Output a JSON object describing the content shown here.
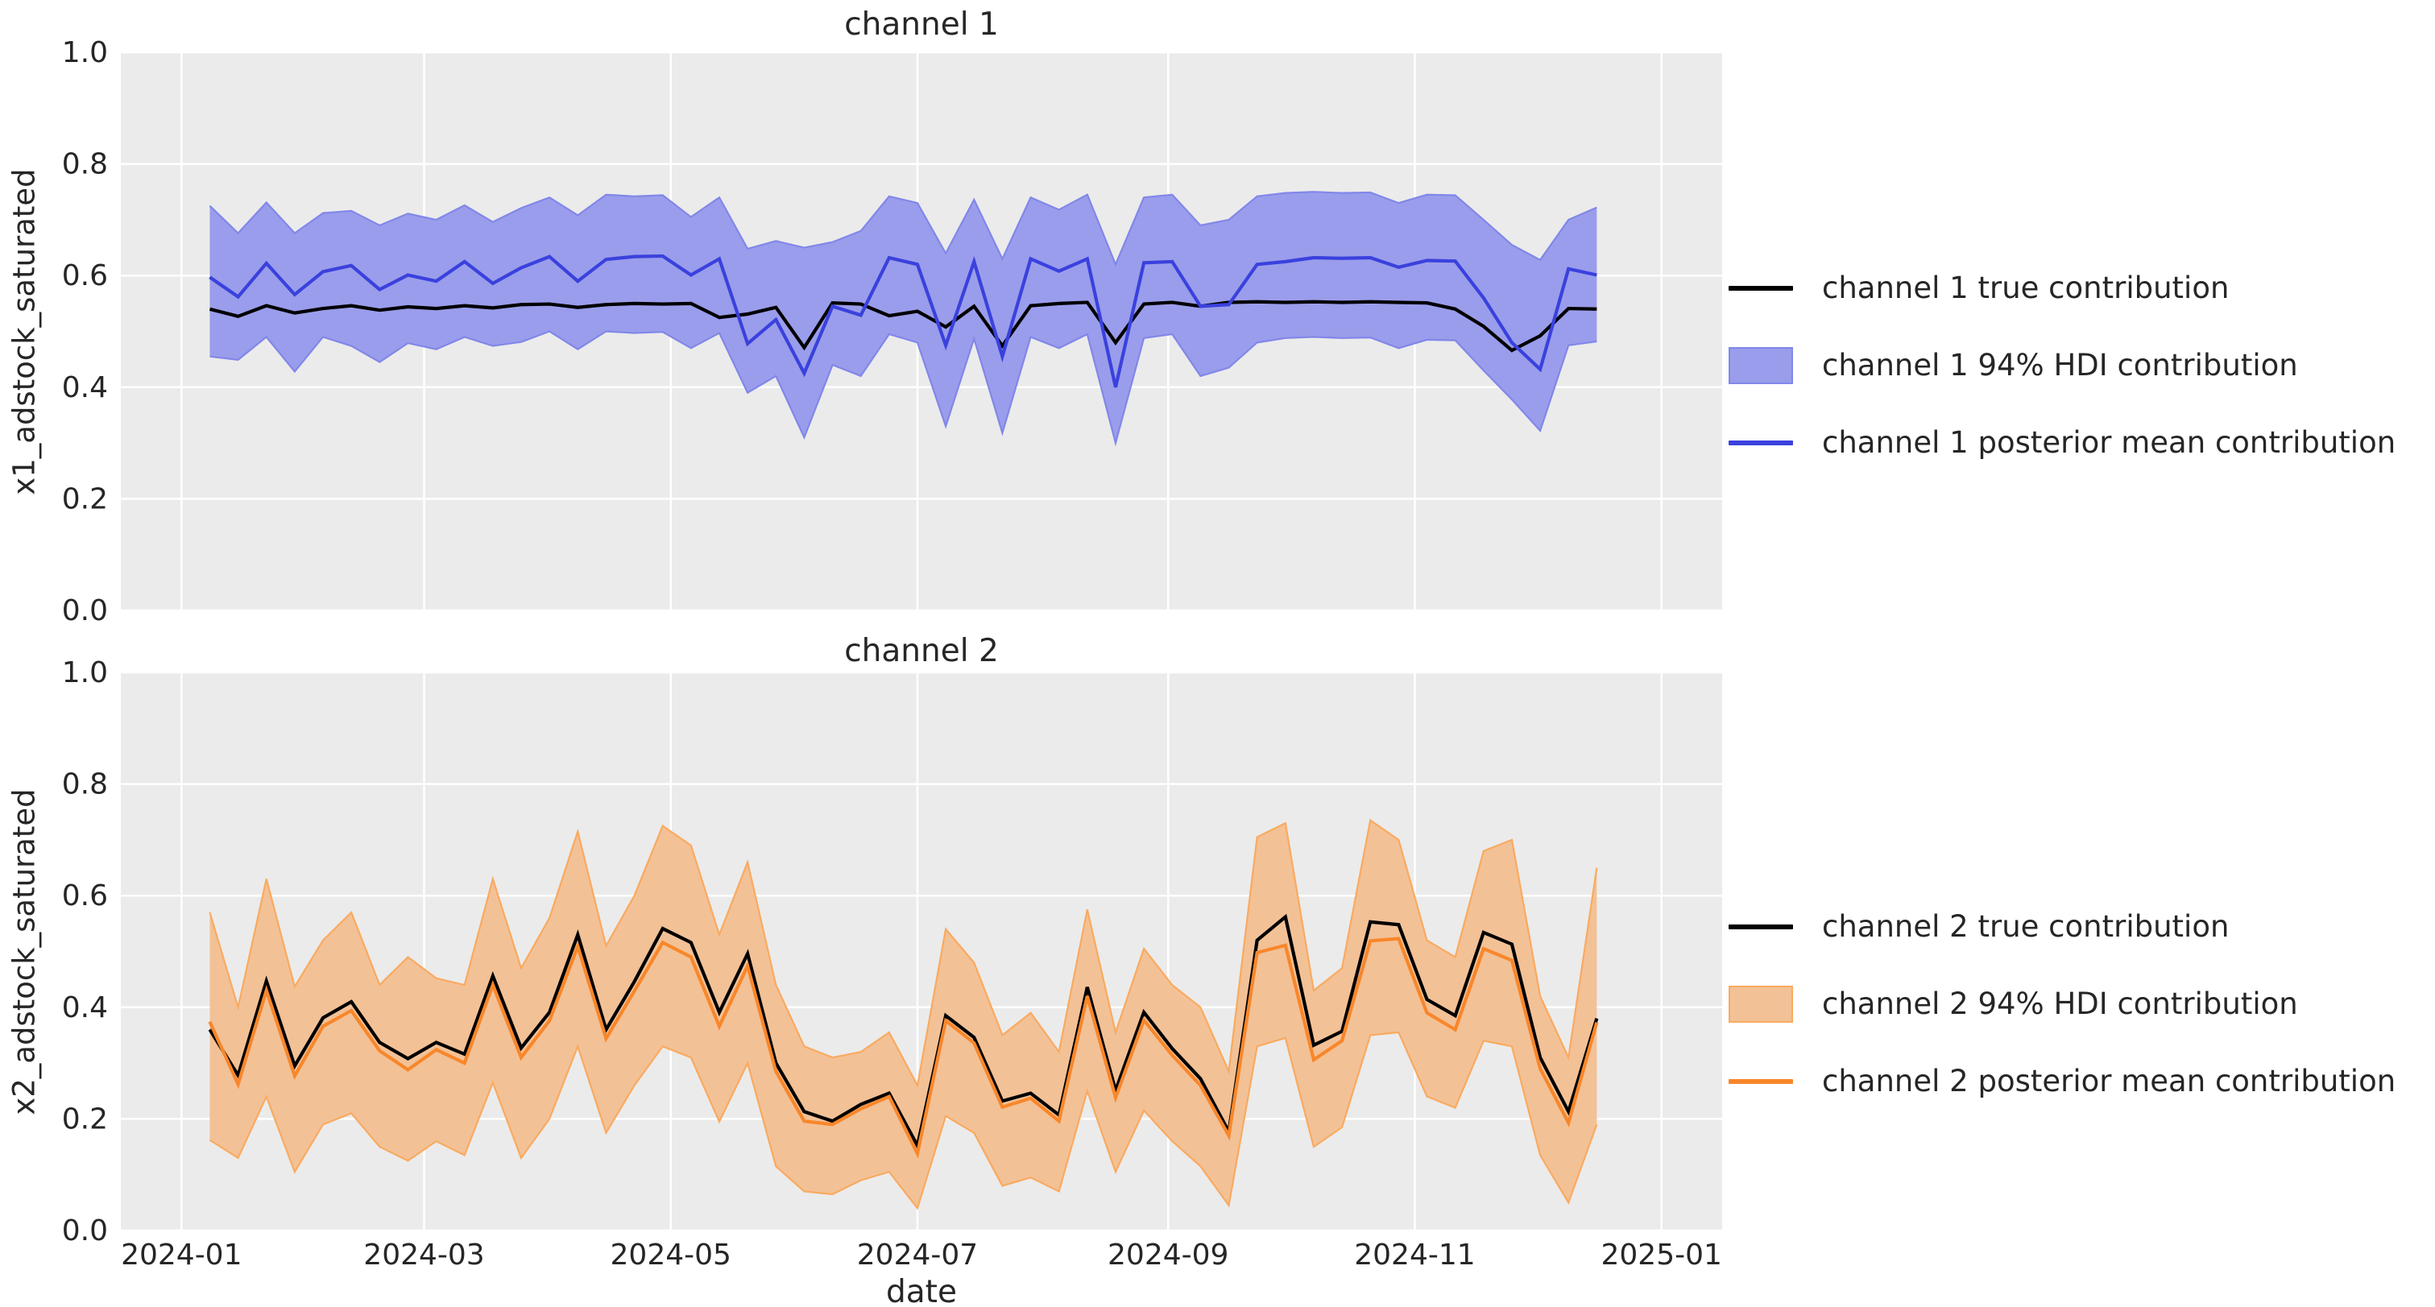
{
  "figure": {
    "xlabel": "date",
    "background_color": "#ffffff",
    "plot_background_color": "#ebebeb",
    "gridline_color": "#ffffff",
    "text_color": "#262626"
  },
  "x_dates": [
    "2024-01-08",
    "2024-01-15",
    "2024-01-22",
    "2024-01-29",
    "2024-02-05",
    "2024-02-12",
    "2024-02-19",
    "2024-02-26",
    "2024-03-04",
    "2024-03-11",
    "2024-03-18",
    "2024-03-25",
    "2024-04-01",
    "2024-04-08",
    "2024-04-15",
    "2024-04-22",
    "2024-04-29",
    "2024-05-06",
    "2024-05-13",
    "2024-05-20",
    "2024-05-27",
    "2024-06-03",
    "2024-06-10",
    "2024-06-17",
    "2024-06-24",
    "2024-07-01",
    "2024-07-08",
    "2024-07-15",
    "2024-07-22",
    "2024-07-29",
    "2024-08-05",
    "2024-08-12",
    "2024-08-19",
    "2024-08-26",
    "2024-09-02",
    "2024-09-09",
    "2024-09-16",
    "2024-09-23",
    "2024-09-30",
    "2024-10-07",
    "2024-10-14",
    "2024-10-21",
    "2024-10-28",
    "2024-11-04",
    "2024-11-11",
    "2024-11-18",
    "2024-11-25",
    "2024-12-02",
    "2024-12-09",
    "2024-12-16"
  ],
  "xticks": [
    {
      "label": "2024-01",
      "date": "2024-01-01"
    },
    {
      "label": "2024-03",
      "date": "2024-03-01"
    },
    {
      "label": "2024-05",
      "date": "2024-05-01"
    },
    {
      "label": "2024-07",
      "date": "2024-07-01"
    },
    {
      "label": "2024-09",
      "date": "2024-09-01"
    },
    {
      "label": "2024-11",
      "date": "2024-11-01"
    },
    {
      "label": "2025-01",
      "date": "2025-01-01"
    }
  ],
  "chart_data": [
    {
      "type": "line",
      "title": "channel 1",
      "ylabel": "x1_adstock_saturated",
      "xlabel": "",
      "ylim": [
        0.0,
        1.0
      ],
      "yticks": [
        "0.0",
        "0.2",
        "0.4",
        "0.6",
        "0.8",
        "1.0"
      ],
      "grid": true,
      "legend_position": "outside center right",
      "colors": {
        "band": "#9a9deb",
        "band_edge": "#8187e8",
        "mean_line": "#3a41dd",
        "true_line": "#000000"
      },
      "series": [
        {
          "name": "channel 1 true contribution",
          "role": "true",
          "swatch": "line",
          "color": "#000000",
          "values": [
            0.54,
            0.527,
            0.546,
            0.533,
            0.541,
            0.546,
            0.538,
            0.544,
            0.541,
            0.546,
            0.542,
            0.548,
            0.549,
            0.543,
            0.548,
            0.55,
            0.549,
            0.55,
            0.525,
            0.531,
            0.543,
            0.471,
            0.551,
            0.549,
            0.528,
            0.536,
            0.508,
            0.545,
            0.474,
            0.546,
            0.55,
            0.552,
            0.48,
            0.549,
            0.552,
            0.545,
            0.552,
            0.553,
            0.552,
            0.553,
            0.552,
            0.553,
            0.552,
            0.551,
            0.54,
            0.509,
            0.466,
            0.492,
            0.541,
            0.54
          ]
        },
        {
          "name": "channel 1 94% HDI contribution",
          "role": "hdi_band",
          "swatch": "patch",
          "color": "#9a9deb",
          "lower": [
            0.455,
            0.449,
            0.49,
            0.428,
            0.49,
            0.474,
            0.445,
            0.479,
            0.468,
            0.49,
            0.474,
            0.481,
            0.5,
            0.468,
            0.5,
            0.497,
            0.499,
            0.47,
            0.497,
            0.39,
            0.42,
            0.31,
            0.44,
            0.42,
            0.495,
            0.48,
            0.33,
            0.487,
            0.318,
            0.49,
            0.47,
            0.495,
            0.3,
            0.488,
            0.495,
            0.42,
            0.435,
            0.48,
            0.488,
            0.49,
            0.488,
            0.489,
            0.47,
            0.485,
            0.484,
            0.43,
            0.378,
            0.322,
            0.475,
            0.482
          ],
          "upper": [
            0.725,
            0.676,
            0.731,
            0.676,
            0.712,
            0.716,
            0.69,
            0.711,
            0.7,
            0.726,
            0.696,
            0.721,
            0.74,
            0.708,
            0.745,
            0.742,
            0.744,
            0.705,
            0.74,
            0.648,
            0.662,
            0.65,
            0.66,
            0.68,
            0.742,
            0.73,
            0.64,
            0.736,
            0.63,
            0.74,
            0.718,
            0.745,
            0.62,
            0.74,
            0.745,
            0.69,
            0.7,
            0.742,
            0.748,
            0.75,
            0.748,
            0.749,
            0.73,
            0.745,
            0.744,
            0.7,
            0.655,
            0.628,
            0.7,
            0.722
          ]
        },
        {
          "name": "channel 1 posterior mean contribution",
          "role": "posterior_mean",
          "swatch": "line",
          "color": "#3a41dd",
          "values": [
            0.597,
            0.562,
            0.622,
            0.566,
            0.607,
            0.618,
            0.575,
            0.601,
            0.59,
            0.625,
            0.586,
            0.614,
            0.634,
            0.59,
            0.629,
            0.634,
            0.635,
            0.601,
            0.63,
            0.478,
            0.521,
            0.425,
            0.545,
            0.529,
            0.632,
            0.62,
            0.475,
            0.625,
            0.455,
            0.63,
            0.608,
            0.63,
            0.4,
            0.623,
            0.625,
            0.545,
            0.548,
            0.62,
            0.625,
            0.632,
            0.631,
            0.632,
            0.615,
            0.627,
            0.626,
            0.56,
            0.48,
            0.432,
            0.612,
            0.601
          ]
        }
      ]
    },
    {
      "type": "line",
      "title": "channel 2",
      "ylabel": "x2_adstock_saturated",
      "xlabel": "date",
      "ylim": [
        0.0,
        1.0
      ],
      "yticks": [
        "0.0",
        "0.2",
        "0.4",
        "0.6",
        "0.8",
        "1.0"
      ],
      "grid": true,
      "legend_position": "outside center right",
      "colors": {
        "band": "#f3c196",
        "band_edge": "#f9aa60",
        "mean_line": "#f8872b",
        "true_line": "#000000"
      },
      "series": [
        {
          "name": "channel 2 true contribution",
          "role": "true",
          "swatch": "line",
          "color": "#000000",
          "values": [
            0.36,
            0.278,
            0.447,
            0.295,
            0.381,
            0.41,
            0.337,
            0.308,
            0.337,
            0.316,
            0.456,
            0.327,
            0.391,
            0.53,
            0.36,
            0.446,
            0.541,
            0.516,
            0.391,
            0.496,
            0.3,
            0.213,
            0.196,
            0.226,
            0.246,
            0.152,
            0.385,
            0.346,
            0.232,
            0.246,
            0.207,
            0.436,
            0.251,
            0.391,
            0.326,
            0.272,
            0.177,
            0.52,
            0.562,
            0.332,
            0.357,
            0.553,
            0.548,
            0.414,
            0.385,
            0.534,
            0.513,
            0.31,
            0.213,
            0.38
          ]
        },
        {
          "name": "channel 2 94% HDI contribution",
          "role": "hdi_band",
          "swatch": "patch",
          "color": "#f3c196",
          "lower": [
            0.162,
            0.13,
            0.24,
            0.105,
            0.19,
            0.21,
            0.15,
            0.125,
            0.16,
            0.135,
            0.265,
            0.13,
            0.2,
            0.33,
            0.175,
            0.26,
            0.33,
            0.31,
            0.195,
            0.3,
            0.115,
            0.07,
            0.065,
            0.09,
            0.105,
            0.04,
            0.205,
            0.175,
            0.08,
            0.095,
            0.07,
            0.25,
            0.105,
            0.215,
            0.16,
            0.115,
            0.045,
            0.33,
            0.345,
            0.15,
            0.185,
            0.35,
            0.355,
            0.24,
            0.22,
            0.34,
            0.33,
            0.135,
            0.05,
            0.19
          ],
          "upper": [
            0.57,
            0.4,
            0.63,
            0.437,
            0.52,
            0.57,
            0.44,
            0.49,
            0.452,
            0.44,
            0.63,
            0.47,
            0.56,
            0.715,
            0.51,
            0.6,
            0.725,
            0.69,
            0.53,
            0.66,
            0.44,
            0.33,
            0.31,
            0.32,
            0.355,
            0.26,
            0.54,
            0.48,
            0.35,
            0.39,
            0.32,
            0.575,
            0.355,
            0.505,
            0.44,
            0.4,
            0.285,
            0.705,
            0.73,
            0.43,
            0.47,
            0.735,
            0.7,
            0.52,
            0.49,
            0.68,
            0.7,
            0.42,
            0.31,
            0.65
          ]
        },
        {
          "name": "channel 2 posterior mean contribution",
          "role": "posterior_mean",
          "swatch": "line",
          "color": "#f8872b",
          "values": [
            0.374,
            0.262,
            0.43,
            0.277,
            0.366,
            0.394,
            0.322,
            0.288,
            0.324,
            0.3,
            0.44,
            0.31,
            0.376,
            0.509,
            0.344,
            0.429,
            0.516,
            0.49,
            0.366,
            0.474,
            0.285,
            0.196,
            0.19,
            0.218,
            0.24,
            0.138,
            0.376,
            0.336,
            0.221,
            0.237,
            0.196,
            0.42,
            0.238,
            0.377,
            0.314,
            0.26,
            0.17,
            0.498,
            0.511,
            0.306,
            0.34,
            0.519,
            0.523,
            0.39,
            0.36,
            0.505,
            0.484,
            0.29,
            0.193,
            0.373
          ]
        }
      ]
    }
  ]
}
